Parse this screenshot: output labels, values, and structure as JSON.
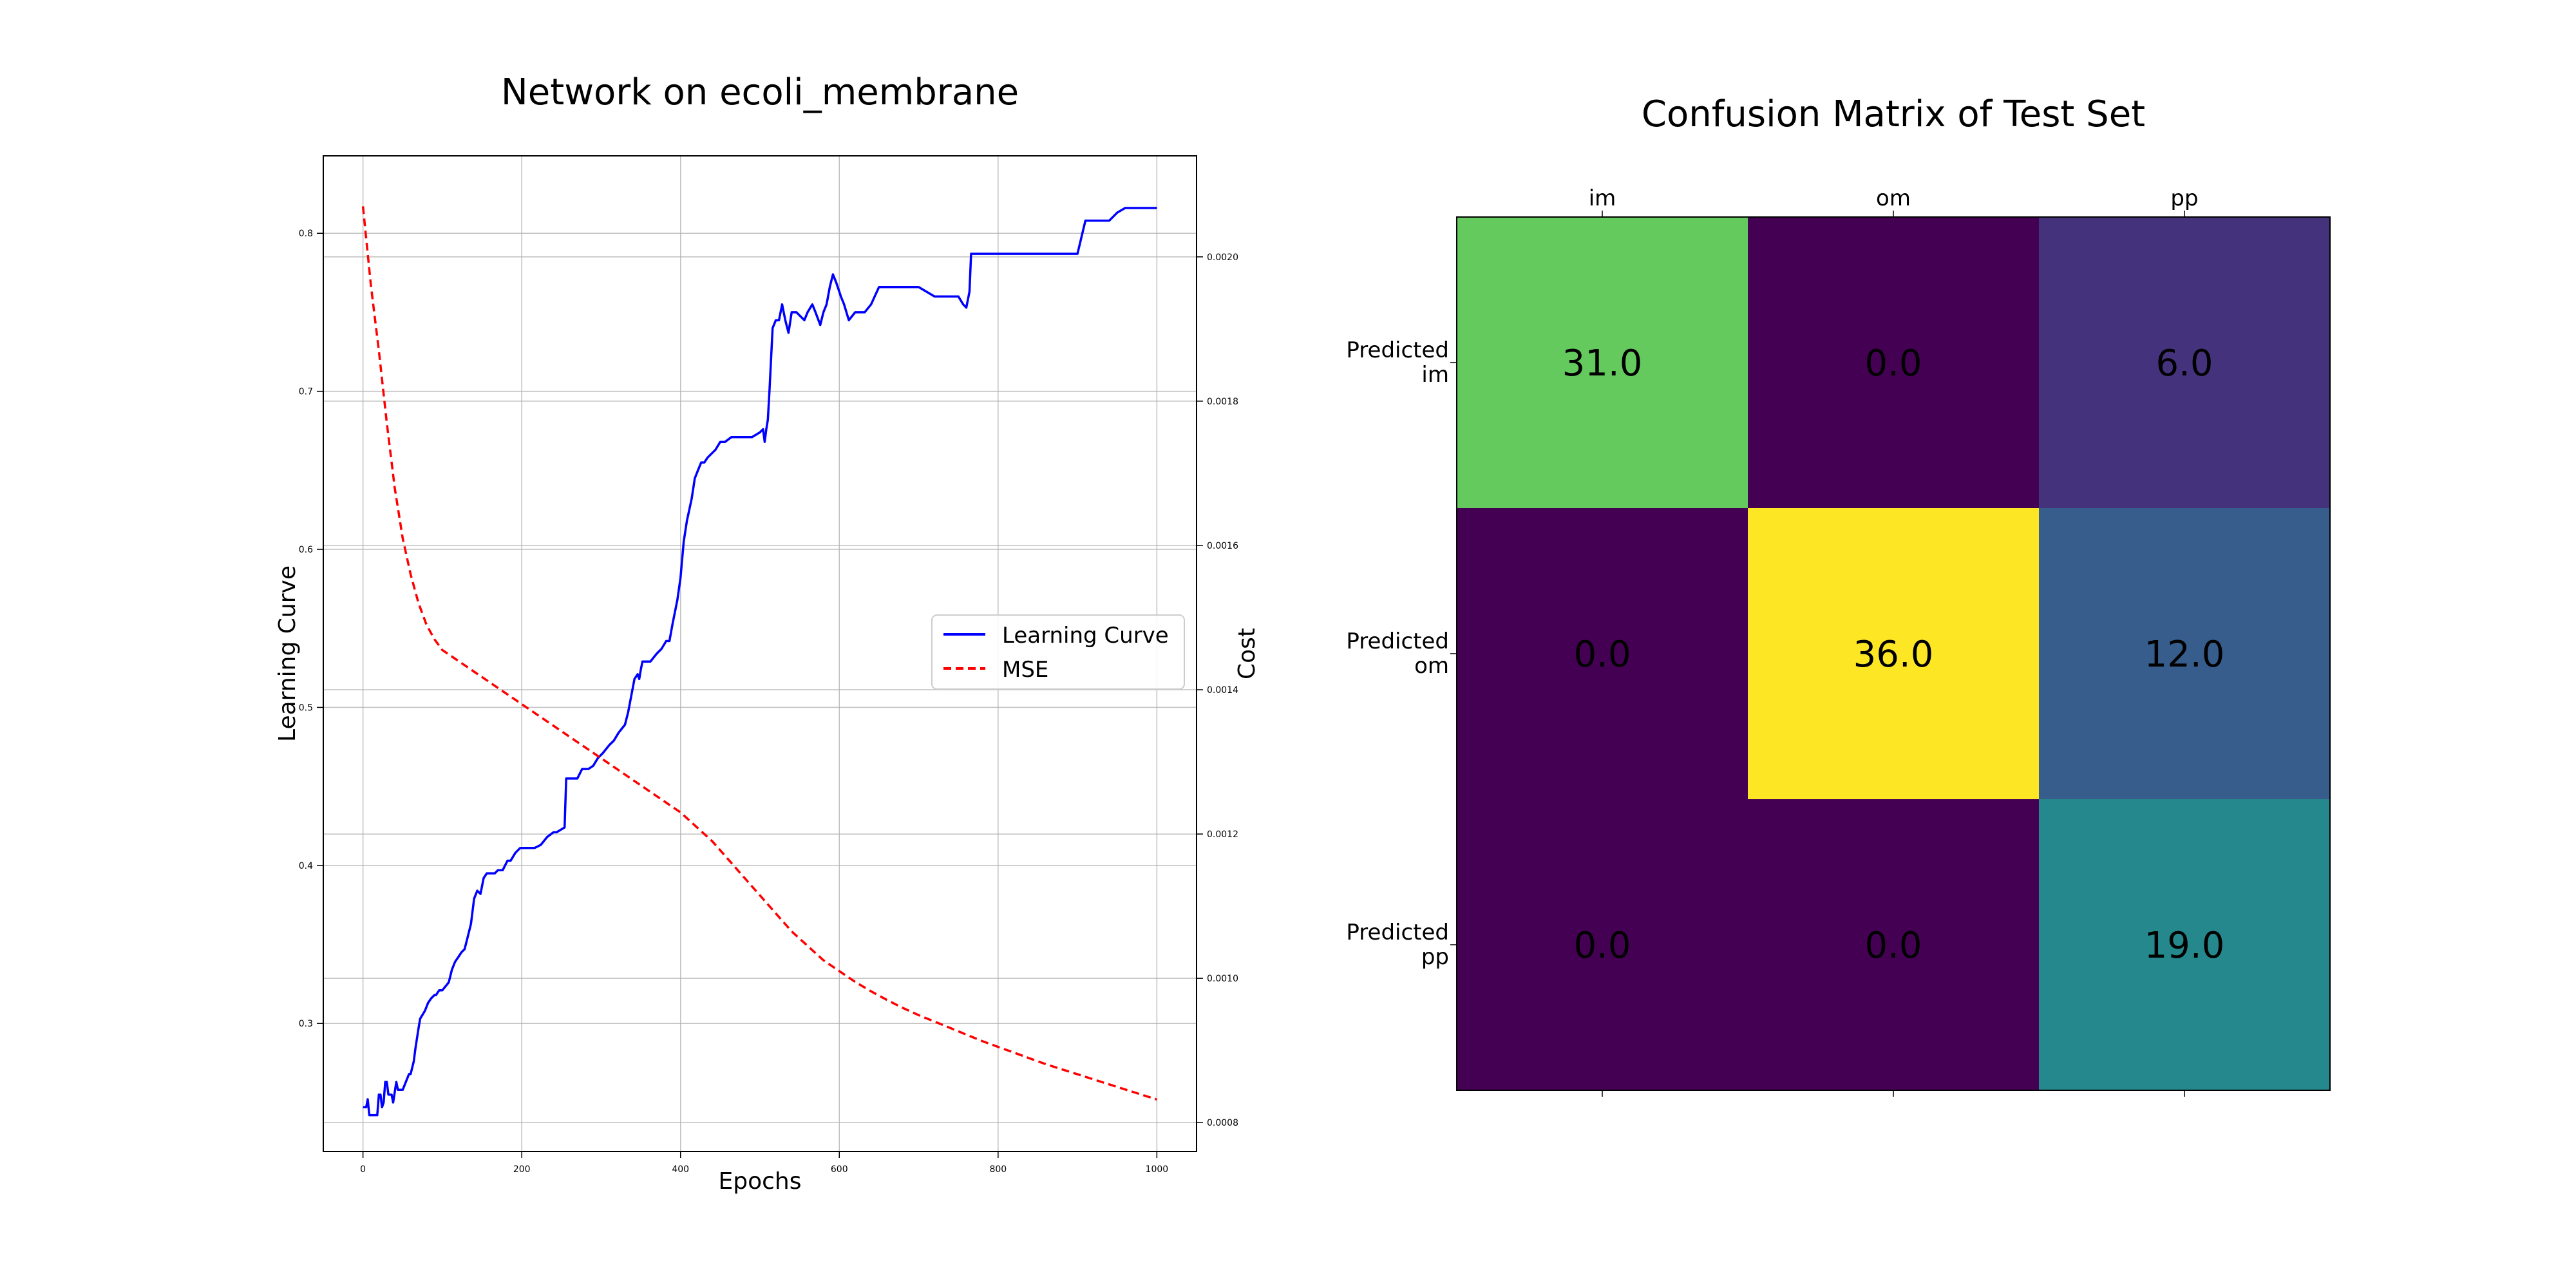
{
  "chart_data": [
    {
      "type": "line",
      "title": "Network on ecoli_membrane",
      "xlabel": "Epochs",
      "ylabel": "Learning Curve",
      "y2label": "Cost",
      "xlim": [
        -50,
        1050
      ],
      "ylim": [
        0.219,
        0.849
      ],
      "y2lim": [
        0.00076,
        0.00214
      ],
      "xticks": [
        0,
        200,
        400,
        600,
        800,
        1000
      ],
      "yticks": [
        0.3,
        0.4,
        0.5,
        0.6,
        0.7,
        0.8
      ],
      "y2ticks": [
        0.0008,
        0.001,
        0.0012,
        0.0014,
        0.0016,
        0.0018,
        0.002
      ],
      "grid": true,
      "legend_position": "center-right",
      "series": [
        {
          "name": "Learning Curve",
          "axis": "left",
          "color": "#0000ff",
          "style": "solid",
          "x": [
            0,
            4,
            6,
            8,
            12,
            18,
            20,
            22,
            24,
            26,
            28,
            30,
            32,
            36,
            38,
            42,
            44,
            50,
            58,
            60,
            64,
            66,
            70,
            72,
            78,
            82,
            86,
            90,
            92,
            96,
            100,
            108,
            112,
            116,
            120,
            124,
            128,
            132,
            136,
            140,
            144,
            148,
            152,
            156,
            160,
            166,
            170,
            176,
            182,
            186,
            192,
            198,
            200,
            208,
            216,
            224,
            232,
            240,
            244,
            254,
            256,
            262,
            270,
            276,
            284,
            290,
            296,
            302,
            310,
            316,
            322,
            330,
            334,
            342,
            346,
            348,
            350,
            352,
            358,
            362,
            370,
            376,
            382,
            386,
            390,
            396,
            400,
            404,
            408,
            414,
            418,
            422,
            426,
            430,
            434,
            440,
            444,
            450,
            456,
            464,
            474,
            490,
            500,
            504,
            506,
            508,
            510,
            512,
            516,
            520,
            524,
            528,
            532,
            536,
            540,
            546,
            552,
            556,
            560,
            566,
            570,
            576,
            580,
            584,
            588,
            592,
            596,
            600,
            602,
            606,
            612,
            620,
            624,
            632,
            640,
            650,
            660,
            670,
            680,
            700,
            720,
            740,
            750,
            756,
            760,
            764,
            766,
            770,
            780,
            800,
            860,
            900,
            910,
            920,
            940,
            950,
            960,
            980,
            1000
          ],
          "values": [
            0.247,
            0.247,
            0.252,
            0.242,
            0.242,
            0.242,
            0.255,
            0.255,
            0.247,
            0.25,
            0.263,
            0.263,
            0.255,
            0.255,
            0.25,
            0.263,
            0.258,
            0.258,
            0.268,
            0.268,
            0.276,
            0.284,
            0.297,
            0.303,
            0.308,
            0.313,
            0.316,
            0.318,
            0.318,
            0.321,
            0.321,
            0.326,
            0.334,
            0.339,
            0.342,
            0.345,
            0.347,
            0.355,
            0.363,
            0.379,
            0.384,
            0.382,
            0.392,
            0.395,
            0.395,
            0.395,
            0.397,
            0.397,
            0.403,
            0.403,
            0.408,
            0.411,
            0.411,
            0.411,
            0.411,
            0.413,
            0.418,
            0.421,
            0.421,
            0.424,
            0.455,
            0.455,
            0.455,
            0.461,
            0.461,
            0.463,
            0.468,
            0.471,
            0.476,
            0.479,
            0.484,
            0.489,
            0.497,
            0.518,
            0.521,
            0.518,
            0.524,
            0.529,
            0.529,
            0.529,
            0.534,
            0.537,
            0.542,
            0.542,
            0.553,
            0.568,
            0.582,
            0.605,
            0.618,
            0.632,
            0.645,
            0.65,
            0.655,
            0.655,
            0.658,
            0.661,
            0.663,
            0.668,
            0.668,
            0.671,
            0.671,
            0.671,
            0.674,
            0.676,
            0.668,
            0.676,
            0.682,
            0.7,
            0.74,
            0.745,
            0.745,
            0.755,
            0.745,
            0.737,
            0.75,
            0.75,
            0.747,
            0.745,
            0.75,
            0.755,
            0.75,
            0.742,
            0.75,
            0.755,
            0.766,
            0.774,
            0.769,
            0.763,
            0.76,
            0.755,
            0.745,
            0.75,
            0.75,
            0.75,
            0.755,
            0.766,
            0.766,
            0.766,
            0.766,
            0.766,
            0.76,
            0.76,
            0.76,
            0.755,
            0.753,
            0.763,
            0.787,
            0.787,
            0.787,
            0.787,
            0.787,
            0.787,
            0.808,
            0.808,
            0.808,
            0.813,
            0.816,
            0.816,
            0.816
          ]
        },
        {
          "name": "MSE",
          "axis": "right",
          "color": "#ff0000",
          "style": "dashed",
          "x": [
            0,
            10,
            20,
            30,
            40,
            50,
            60,
            70,
            80,
            90,
            100,
            120,
            140,
            160,
            180,
            200,
            220,
            240,
            260,
            280,
            300,
            320,
            340,
            360,
            380,
            400,
            420,
            440,
            460,
            480,
            500,
            520,
            540,
            560,
            580,
            600,
            620,
            640,
            660,
            680,
            700,
            720,
            740,
            760,
            780,
            800,
            820,
            840,
            860,
            880,
            900,
            920,
            940,
            960,
            980,
            1000
          ],
          "values": [
            0.00207,
            0.00196,
            0.00187,
            0.00177,
            0.00168,
            0.00161,
            0.00156,
            0.00152,
            0.00149,
            0.00147,
            0.001455,
            0.00144,
            0.001425,
            0.00141,
            0.001395,
            0.00138,
            0.001365,
            0.00135,
            0.001335,
            0.00132,
            0.001305,
            0.00129,
            0.001275,
            0.00126,
            0.001245,
            0.00123,
            0.00121,
            0.00119,
            0.001165,
            0.00114,
            0.001115,
            0.00109,
            0.001065,
            0.001045,
            0.001025,
            0.00101,
            0.000995,
            0.000982,
            0.00097,
            0.000959,
            0.000949,
            0.00094,
            0.000931,
            0.000922,
            0.000913,
            0.000905,
            0.000897,
            0.000889,
            0.000881,
            0.000874,
            0.000867,
            0.00086,
            0.000853,
            0.000846,
            0.000839,
            0.000832
          ]
        }
      ]
    },
    {
      "type": "heatmap",
      "title": "Confusion Matrix of Test Set",
      "columns": [
        "im",
        "om",
        "pp"
      ],
      "row_labels": [
        [
          "Predicted",
          "im"
        ],
        [
          "Predicted",
          "om"
        ],
        [
          "Predicted",
          "pp"
        ]
      ],
      "values": [
        [
          31.0,
          0.0,
          6.0
        ],
        [
          0.0,
          36.0,
          12.0
        ],
        [
          0.0,
          0.0,
          19.0
        ]
      ],
      "cell_labels": [
        [
          "31.0",
          "0.0",
          "6.0"
        ],
        [
          "0.0",
          "36.0",
          "12.0"
        ],
        [
          "0.0",
          "0.0",
          "19.0"
        ]
      ],
      "colormap": "viridis",
      "vmin": 0,
      "vmax": 36
    }
  ]
}
